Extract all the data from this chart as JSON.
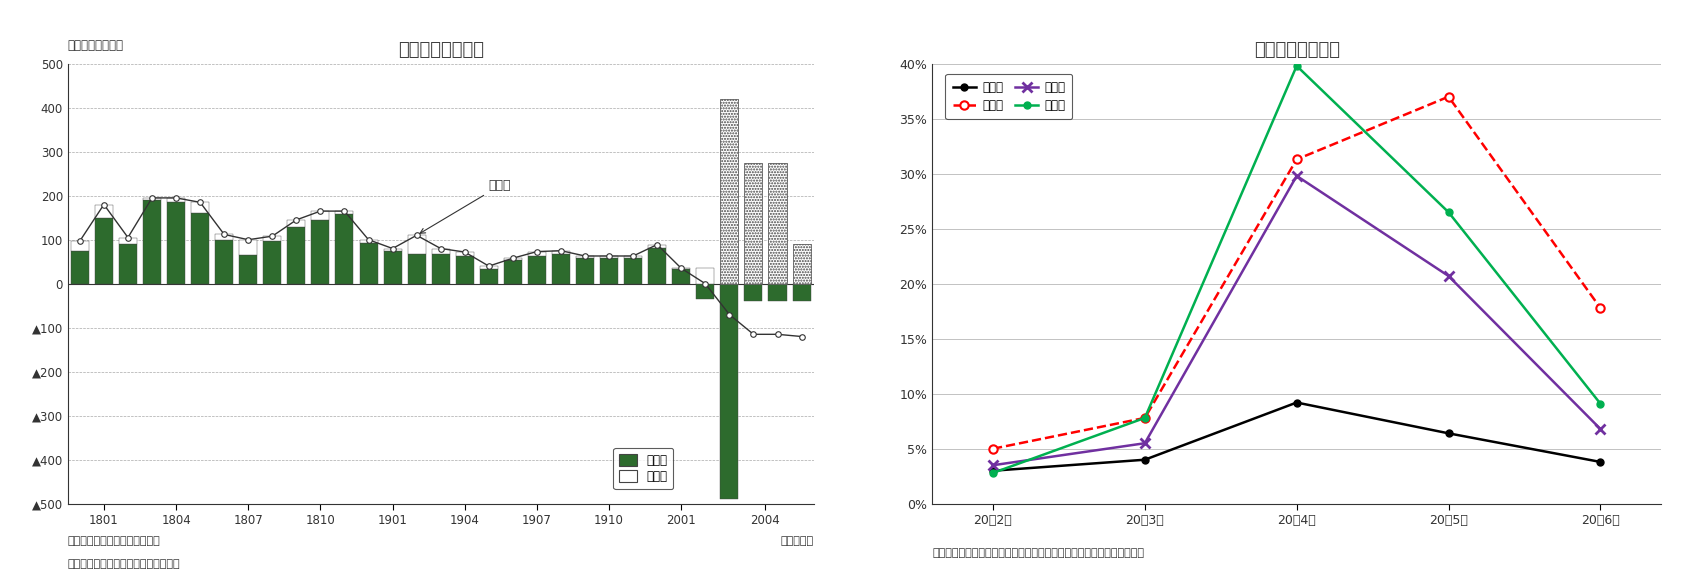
{
  "left_title": "就業者増減の内訳",
  "left_ylabel": "（前年差、万人）",
  "left_xlabel": "（年・月）",
  "left_note1": "（注）就業者＝従業者＋休業者",
  "left_note2": "（資料）総務省統計局「労働力調査」",
  "left_legend1": "従業者",
  "left_legend2": "休業者",
  "left_annotation": "就業者",
  "left_yticks": [
    500,
    400,
    300,
    200,
    100,
    0,
    -100,
    -200,
    -300,
    -400,
    -500
  ],
  "left_ytick_labels": [
    "500",
    "400",
    "300",
    "200",
    "100",
    "0",
    "▲100",
    "▲200",
    "▲300",
    "▲400",
    "▲500"
  ],
  "left_xtick_labels": [
    "1801",
    "1804",
    "1807",
    "1810",
    "1901",
    "1904",
    "1907",
    "1910",
    "2001",
    "2004"
  ],
  "group_starts": [
    0,
    3,
    6,
    9,
    12,
    15,
    18,
    21,
    24,
    27
  ],
  "group_sizes": [
    3,
    3,
    3,
    3,
    3,
    3,
    3,
    3,
    3,
    4
  ],
  "jugyosha_bars": [
    75,
    150,
    90,
    190,
    185,
    160,
    100,
    65,
    98,
    130,
    145,
    158,
    93,
    75,
    68,
    68,
    62,
    33,
    53,
    63,
    68,
    58,
    58,
    58,
    82,
    33,
    -35,
    -490,
    -40,
    -40,
    -40
  ],
  "kyugyosha_bars": [
    22,
    30,
    15,
    5,
    10,
    25,
    12,
    35,
    10,
    15,
    20,
    7,
    7,
    5,
    42,
    12,
    10,
    7,
    5,
    10,
    7,
    5,
    5,
    5,
    7,
    2,
    35,
    420,
    275,
    275,
    90
  ],
  "jugyosha_line": [
    97,
    180,
    105,
    195,
    195,
    185,
    112,
    100,
    108,
    145,
    165,
    165,
    100,
    80,
    110,
    80,
    72,
    40,
    58,
    73,
    75,
    63,
    63,
    63,
    89,
    35,
    0,
    -70,
    -115,
    -115,
    -120
  ],
  "dotted_indices": [
    27,
    28,
    29,
    30
  ],
  "right_title": "主な産業別休業率",
  "right_xlabel_note": "（資料）総務省統計局「労働力調査」　（注）休業率＝休業者／就業者",
  "right_xticks": [
    "20年2月",
    "20年3月",
    "20年4月",
    "20年5月",
    "20年6月"
  ],
  "right_yticks": [
    0,
    5,
    10,
    15,
    20,
    25,
    30,
    35,
    40
  ],
  "right_ytick_labels": [
    "0%",
    "5%",
    "10%",
    "15%",
    "20%",
    "25%",
    "30%",
    "35%",
    "40%"
  ],
  "zensangyo": [
    3.0,
    4.0,
    9.2,
    6.4,
    3.8
  ],
  "shukuhaku": [
    5.0,
    7.8,
    31.3,
    37.0,
    17.8
  ],
  "inshoku": [
    3.5,
    5.5,
    29.8,
    20.7,
    6.8
  ],
  "goraku": [
    2.8,
    7.8,
    39.8,
    26.5,
    9.1
  ],
  "legend_entries": [
    "全産業",
    "宿泊業",
    "飲食店",
    "娯楽業"
  ],
  "zensangyo_color": "#000000",
  "shukuhaku_color": "#ff0000",
  "inshoku_color": "#7030a0",
  "goraku_color": "#00b050",
  "bar_green": "#2d6b2d",
  "bar_white": "#ffffff",
  "background_color": "#ffffff",
  "grid_color": "#aaaaaa",
  "title_color": "#404040"
}
